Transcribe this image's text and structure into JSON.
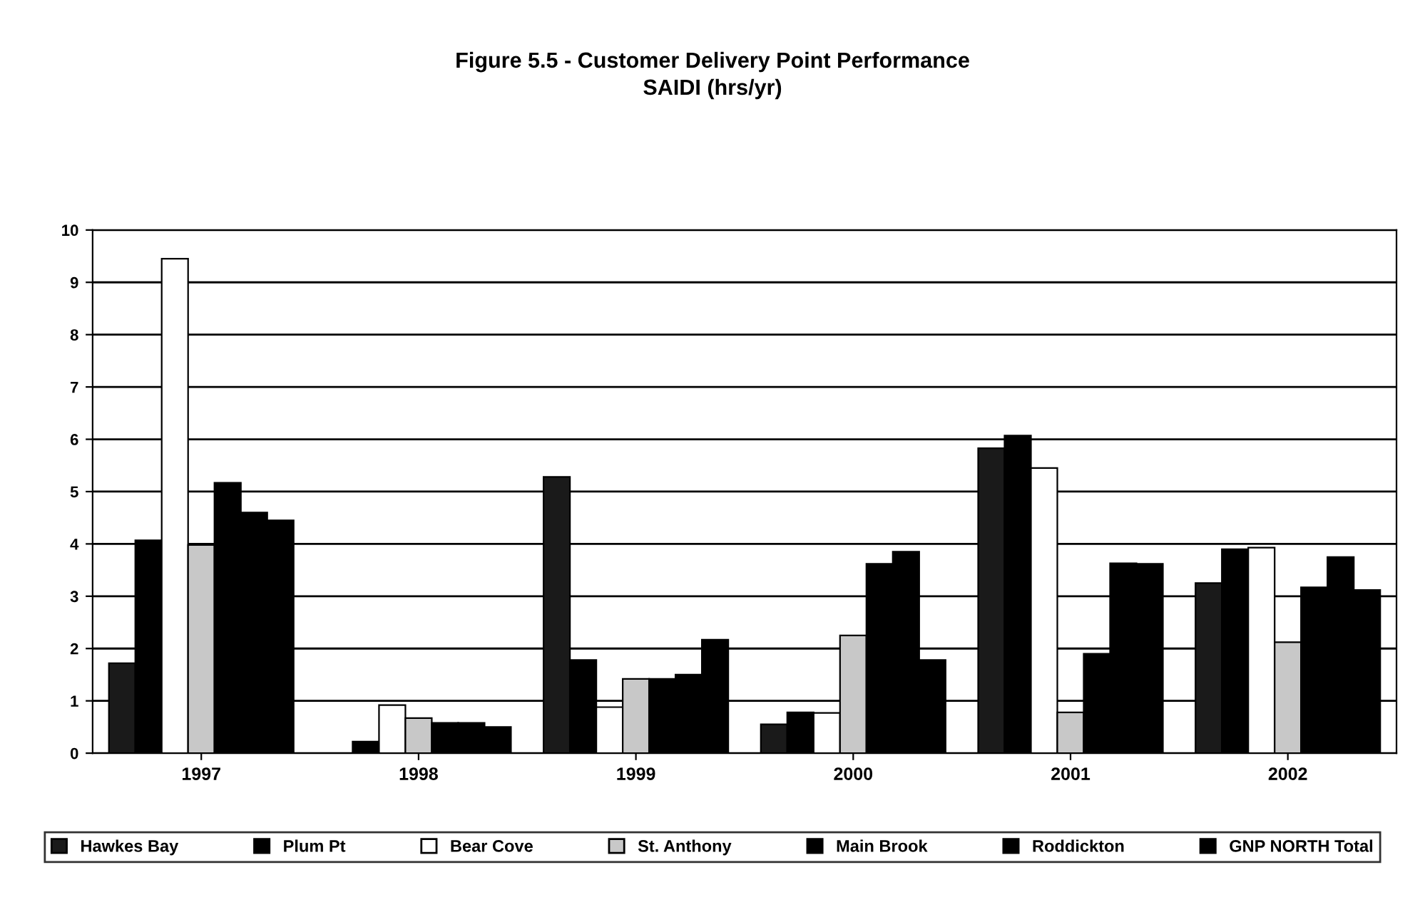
{
  "chart_data": {
    "type": "bar",
    "title": "Figure 5.5 - Customer Delivery Point Performance",
    "subtitle": "SAIDI (hrs/yr)",
    "categories": [
      "1997",
      "1998",
      "1999",
      "2000",
      "2001",
      "2002"
    ],
    "series": [
      {
        "name": "Hawkes Bay",
        "color": "#1a1a1a",
        "values": [
          1.72,
          null,
          5.28,
          0.55,
          5.83,
          3.25
        ]
      },
      {
        "name": "Plum Pt",
        "color": "#000000",
        "values": [
          4.07,
          0.22,
          1.78,
          0.78,
          6.07,
          3.9
        ]
      },
      {
        "name": "Bear Cove",
        "color": "#ffffff",
        "values": [
          9.45,
          0.92,
          0.88,
          0.77,
          5.45,
          3.93
        ]
      },
      {
        "name": "St. Anthony",
        "color": "#c8c8c8",
        "values": [
          3.98,
          0.67,
          1.42,
          2.25,
          0.78,
          2.12
        ]
      },
      {
        "name": "Main Brook",
        "color": "#000000",
        "values": [
          5.17,
          0.58,
          1.42,
          3.62,
          1.9,
          3.17
        ]
      },
      {
        "name": "Roddickton",
        "color": "#000000",
        "values": [
          4.6,
          0.58,
          1.5,
          3.85,
          3.63,
          3.75
        ]
      },
      {
        "name": "GNP NORTH Total",
        "color": "#000000",
        "values": [
          4.45,
          0.5,
          2.17,
          1.78,
          3.62,
          3.12
        ]
      }
    ],
    "ylim": [
      0,
      10
    ],
    "yticks": [
      0,
      1,
      2,
      3,
      4,
      5,
      6,
      7,
      8,
      9,
      10
    ],
    "grid": "y",
    "legend": "bottom"
  }
}
